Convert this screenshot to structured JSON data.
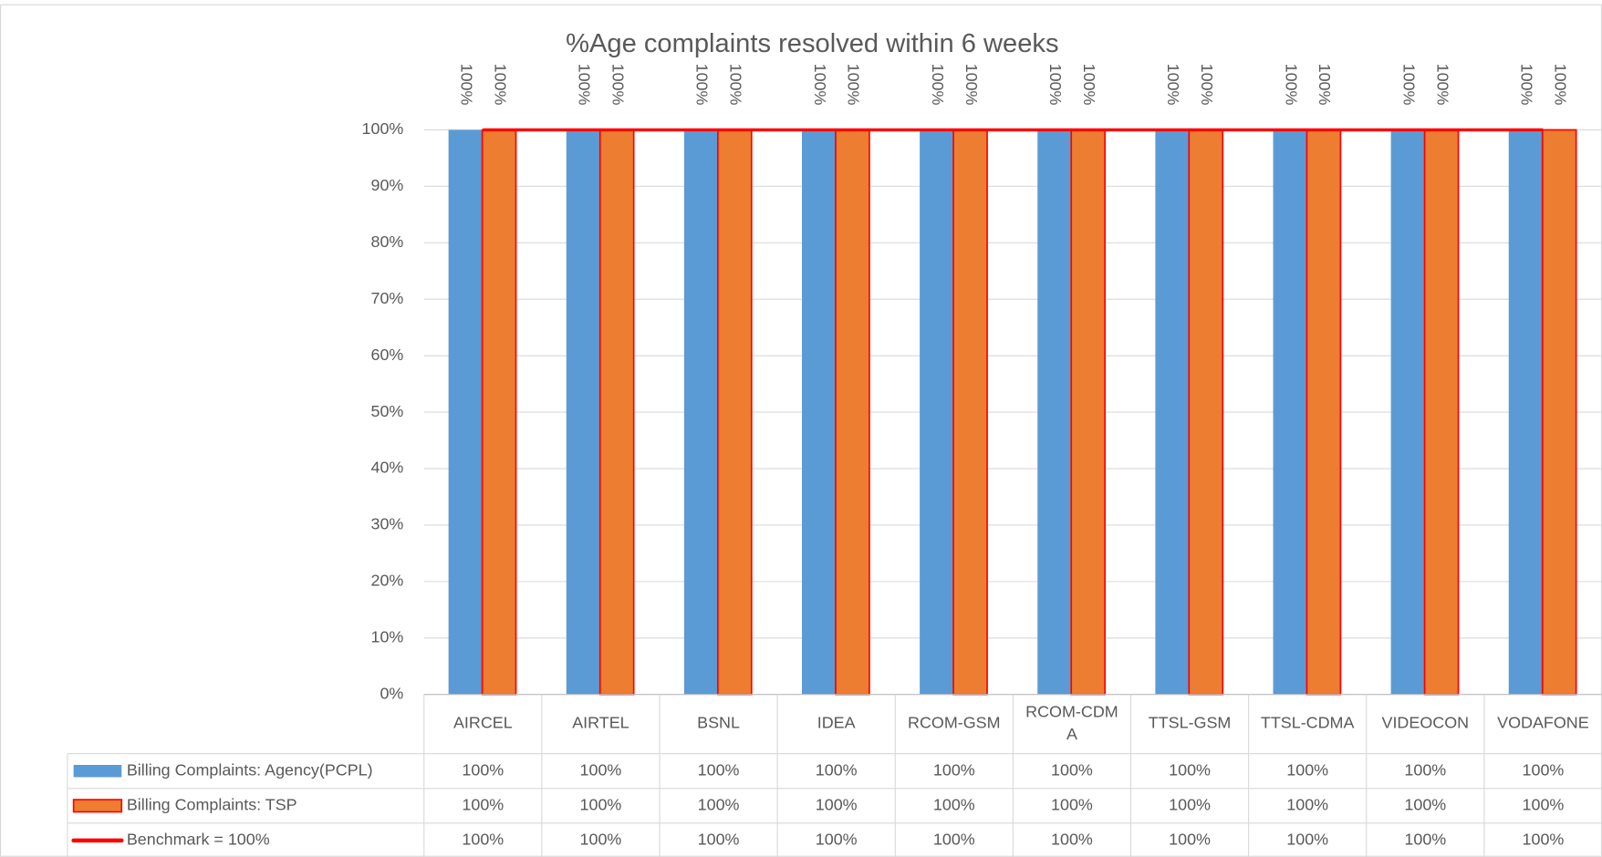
{
  "chart_data": {
    "type": "bar",
    "title": "%Age complaints resolved within 6 weeks",
    "categories": [
      "AIRCEL",
      "AIRTEL",
      "BSNL",
      "IDEA",
      "RCOM-GSM",
      "RCOM-CDMA",
      "TTSL-GSM",
      "TTSL-CDMA",
      "VIDEOCON",
      "VODAFONE"
    ],
    "series": [
      {
        "name": "Billing Complaints: Agency(PCPL)",
        "color": "#5b9bd5",
        "kind": "bar",
        "values": [
          100,
          100,
          100,
          100,
          100,
          100,
          100,
          100,
          100,
          100
        ],
        "value_labels": [
          "100%",
          "100%",
          "100%",
          "100%",
          "100%",
          "100%",
          "100%",
          "100%",
          "100%",
          "100%"
        ]
      },
      {
        "name": "Billing Complaints: TSP",
        "color": "#ed7d31",
        "border_color": "#ff0000",
        "kind": "bar",
        "values": [
          100,
          100,
          100,
          100,
          100,
          100,
          100,
          100,
          100,
          100
        ],
        "value_labels": [
          "100%",
          "100%",
          "100%",
          "100%",
          "100%",
          "100%",
          "100%",
          "100%",
          "100%",
          "100%"
        ]
      },
      {
        "name": "Benchmark = 100%",
        "color": "#ff0000",
        "kind": "line",
        "values": [
          100,
          100,
          100,
          100,
          100,
          100,
          100,
          100,
          100,
          100
        ],
        "value_labels": [
          "100%",
          "100%",
          "100%",
          "100%",
          "100%",
          "100%",
          "100%",
          "100%",
          "100%",
          "100%"
        ]
      }
    ],
    "ylim": [
      0,
      100
    ],
    "yticks": [
      {
        "value": 0,
        "label": "0%"
      },
      {
        "value": 10,
        "label": "10%"
      },
      {
        "value": 20,
        "label": "20%"
      },
      {
        "value": 30,
        "label": "30%"
      },
      {
        "value": 40,
        "label": "40%"
      },
      {
        "value": 50,
        "label": "50%"
      },
      {
        "value": 60,
        "label": "60%"
      },
      {
        "value": 70,
        "label": "70%"
      },
      {
        "value": 80,
        "label": "80%"
      },
      {
        "value": 90,
        "label": "90%"
      },
      {
        "value": 100,
        "label": "100%"
      }
    ],
    "grid": true
  }
}
